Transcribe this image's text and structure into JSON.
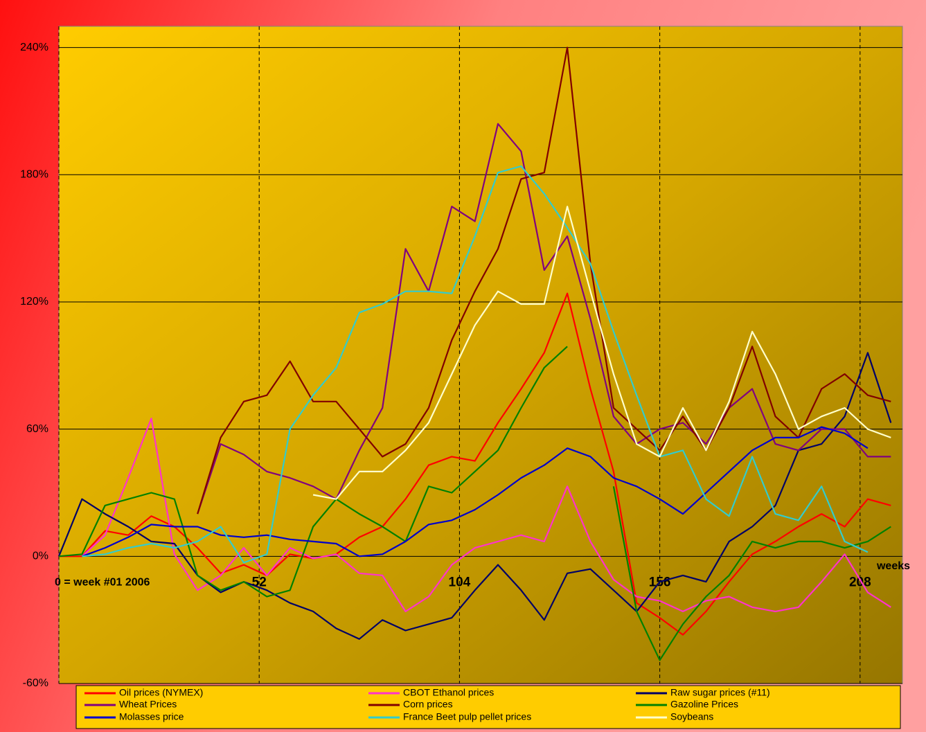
{
  "chart_data": {
    "type": "line",
    "x_label": "weeks",
    "x": [
      0,
      6,
      12,
      18,
      24,
      30,
      36,
      42,
      48,
      54,
      60,
      66,
      72,
      78,
      84,
      90,
      96,
      102,
      108,
      114,
      120,
      126,
      132,
      138,
      144,
      150,
      156,
      162,
      168,
      174,
      180,
      186,
      192,
      198,
      204,
      210,
      216
    ],
    "xlim": [
      0,
      219
    ],
    "xticks": [
      {
        "value": 0,
        "label": "0 = week #01 2006"
      },
      52,
      104,
      156,
      208
    ],
    "ylim": [
      -60,
      250
    ],
    "yticks": [
      {
        "value": -60,
        "label": "-60%"
      },
      {
        "value": 0,
        "label": "0%"
      },
      {
        "value": 60,
        "label": "60%"
      },
      {
        "value": 120,
        "label": "120%"
      },
      {
        "value": 180,
        "label": "180%"
      },
      {
        "value": 240,
        "label": "240%"
      }
    ],
    "grid": true,
    "legend": "bottom",
    "series": [
      {
        "name": "Oil prices (NYMEX)",
        "color": "#ff0000",
        "values": [
          0,
          0,
          12,
          10,
          19,
          14,
          4,
          -8,
          -4,
          -9,
          1,
          -1,
          1,
          9,
          14,
          27,
          43,
          47,
          45,
          63,
          79,
          96,
          124,
          79,
          40,
          -22,
          -29,
          -37,
          -26,
          -12,
          1,
          7,
          14,
          20,
          14,
          27,
          24
        ]
      },
      {
        "name": "CBOT Ethanol prices",
        "color": "#ff33cc",
        "values": [
          null,
          0,
          10,
          37,
          65,
          1,
          -16,
          -9,
          4,
          -9,
          4,
          -1,
          1,
          -8,
          -9,
          -26,
          -19,
          -4,
          4,
          7,
          10,
          7,
          33,
          7,
          -11,
          -19,
          -21,
          -26,
          -21,
          -19,
          -24,
          -26,
          -24,
          -12,
          1,
          -17,
          -24
        ]
      },
      {
        "name": "Raw sugar prices (#11)",
        "color": "#000066",
        "values": [
          0,
          27,
          20,
          14,
          7,
          6,
          -9,
          -17,
          -12,
          -16,
          -22,
          -26,
          -34,
          -39,
          -30,
          -35,
          -32,
          -29,
          -16,
          -4,
          -16,
          -30,
          -8,
          -6,
          -16,
          -26,
          -12,
          -9,
          -12,
          7,
          14,
          24,
          50,
          53,
          66,
          96,
          63
        ]
      },
      {
        "name": "Wheat Prices",
        "color": "#800080",
        "values": [
          null,
          null,
          null,
          null,
          null,
          null,
          20,
          53,
          48,
          40,
          37,
          33,
          27,
          50,
          70,
          145,
          125,
          165,
          158,
          204,
          191,
          135,
          151,
          112,
          66,
          53,
          60,
          63,
          53,
          70,
          79,
          53,
          50,
          60,
          60,
          47,
          47
        ]
      },
      {
        "name": "Corn prices",
        "color": "#800000",
        "values": [
          null,
          null,
          null,
          null,
          null,
          null,
          20,
          56,
          73,
          76,
          92,
          73,
          73,
          60,
          47,
          53,
          70,
          102,
          125,
          145,
          178,
          181,
          240,
          138,
          70,
          60,
          50,
          66,
          50,
          70,
          99,
          66,
          56,
          79,
          86,
          76,
          73
        ]
      },
      {
        "name": "Gazoline Prices",
        "color": "#008000",
        "values": [
          0,
          1,
          24,
          27,
          30,
          27,
          -9,
          -16,
          -12,
          -19,
          -16,
          14,
          27,
          20,
          14,
          7,
          33,
          30,
          40,
          50,
          70,
          89,
          99,
          null,
          33,
          -26,
          -49,
          -32,
          -19,
          -9,
          7,
          4,
          7,
          7,
          4,
          7,
          14
        ]
      },
      {
        "name": "Molasses price",
        "color": "#0000cc",
        "values": [
          null,
          0,
          4,
          9,
          15,
          14,
          14,
          10,
          9,
          10,
          8,
          7,
          6,
          0,
          1,
          7,
          15,
          17,
          22,
          29,
          37,
          43,
          51,
          47,
          37,
          33,
          27,
          20,
          30,
          40,
          50,
          56,
          56,
          61,
          58,
          51,
          null
        ]
      },
      {
        "name": "France Beet pulp pellet prices",
        "color": "#33cccc",
        "values": [
          null,
          0,
          1,
          4,
          6,
          4,
          7,
          14,
          -3,
          1,
          60,
          76,
          89,
          115,
          119,
          125,
          125,
          124,
          151,
          181,
          184,
          171,
          155,
          138,
          106,
          76,
          47,
          50,
          27,
          19,
          47,
          20,
          17,
          33,
          7,
          2,
          null
        ]
      },
      {
        "name": "Soybeans",
        "color": "#ffffcc",
        "values": [
          null,
          null,
          null,
          null,
          null,
          null,
          null,
          null,
          null,
          null,
          null,
          29,
          27,
          40,
          40,
          50,
          63,
          86,
          109,
          125,
          119,
          119,
          165,
          125,
          86,
          53,
          47,
          70,
          50,
          73,
          106,
          86,
          60,
          66,
          70,
          60,
          56
        ]
      }
    ]
  }
}
